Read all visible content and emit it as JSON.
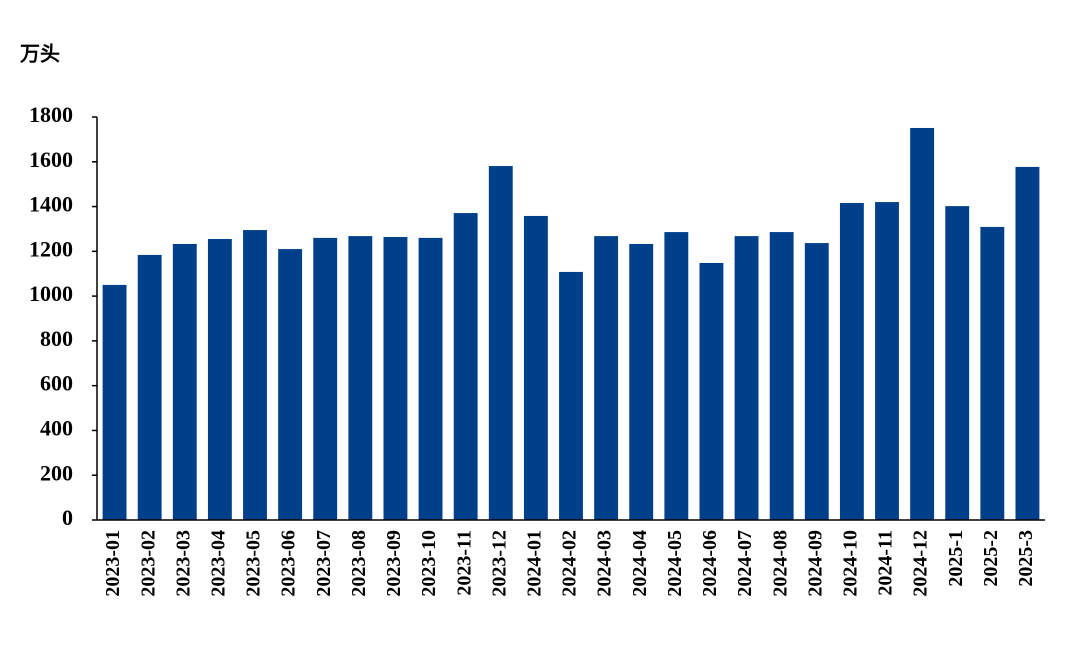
{
  "chart_data": {
    "type": "bar",
    "ylabel": "万头",
    "categories": [
      "2023-01",
      "2023-02",
      "2023-03",
      "2023-04",
      "2023-05",
      "2023-06",
      "2023-07",
      "2023-08",
      "2023-09",
      "2023-10",
      "2023-11",
      "2023-12",
      "2024-01",
      "2024-02",
      "2024-03",
      "2024-04",
      "2024-05",
      "2024-06",
      "2024-07",
      "2024-08",
      "2024-09",
      "2024-10",
      "2024-11",
      "2024-12",
      "2025-1",
      "2025-2",
      "2025-3"
    ],
    "values": [
      1050,
      1184,
      1233,
      1255,
      1295,
      1210,
      1260,
      1268,
      1264,
      1260,
      1371,
      1581,
      1358,
      1108,
      1268,
      1233,
      1286,
      1148,
      1268,
      1286,
      1237,
      1416,
      1420,
      1751,
      1402,
      1309,
      1577
    ],
    "color": "#003f8a",
    "ylim": [
      0,
      1800
    ],
    "yticks": [
      0,
      200,
      400,
      600,
      800,
      1000,
      1200,
      1400,
      1600,
      1800
    ]
  }
}
